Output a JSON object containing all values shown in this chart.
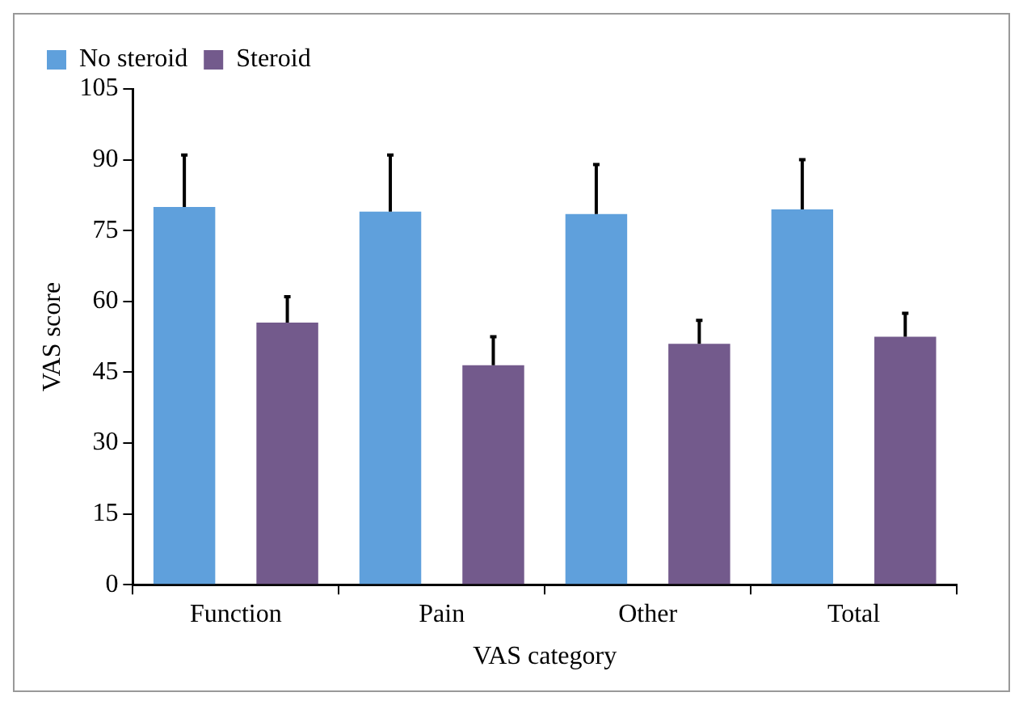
{
  "chart_data": {
    "type": "bar",
    "xlabel": "VAS category",
    "ylabel": "VAS score",
    "categories": [
      "Function",
      "Pain",
      "Other",
      "Total"
    ],
    "series": [
      {
        "name": "No steroid",
        "color": "#5fa0dc",
        "values": [
          80,
          79,
          78.5,
          79.5
        ],
        "errors": [
          [
            80,
            91
          ],
          [
            79,
            91
          ],
          [
            78.5,
            89
          ],
          [
            79.5,
            90
          ]
        ]
      },
      {
        "name": "Steroid",
        "color": "#735a8c",
        "values": [
          55.5,
          46.5,
          51,
          52.5
        ],
        "errors": [
          [
            55.5,
            61
          ],
          [
            46.5,
            52.5
          ],
          [
            51,
            56
          ],
          [
            52.5,
            57.5
          ]
        ]
      }
    ],
    "ylim": [
      0,
      105
    ],
    "yticks": [
      0,
      15,
      30,
      45,
      60,
      75,
      90,
      105
    ],
    "grid": false,
    "legend": "top left"
  }
}
